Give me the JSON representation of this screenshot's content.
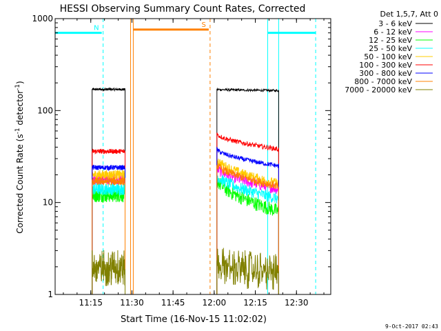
{
  "chart_data": {
    "type": "line",
    "title": "HESSI Observing Summary Count Rates, Corrected",
    "xlabel": "Start Time (16-Nov-15 11:02:02)",
    "ylabel_main": "Corrected Count Rate (s",
    "ylabel_sup1": "-1",
    "ylabel_mid": " detector",
    "ylabel_sup2": "-1",
    "ylabel_end": ")",
    "yscale": "log",
    "ylim": [
      1,
      1000
    ],
    "xlim_minutes": [
      0,
      100.5
    ],
    "xticks": [
      {
        "label": "11:15",
        "m": 13
      },
      {
        "label": "11:30",
        "m": 28
      },
      {
        "label": "11:45",
        "m": 43
      },
      {
        "label": "12:00",
        "m": 58
      },
      {
        "label": "12:15",
        "m": 73
      },
      {
        "label": "12:30",
        "m": 88
      }
    ],
    "yticks": [
      {
        "label": "1",
        "v": 1
      },
      {
        "label": "10",
        "v": 10
      },
      {
        "label": "100",
        "v": 100
      },
      {
        "label": "1000",
        "v": 1000
      }
    ],
    "legend_title": "Det 1,5,7, Att 0",
    "legend_position": "right, outside plot",
    "series": [
      {
        "name": "3 - 6 keV",
        "color": "#000000",
        "seg1": 170,
        "seg2": [
          170,
          165
        ]
      },
      {
        "name": "6 - 12 keV",
        "color": "#ff00ff",
        "seg1": 18,
        "seg2": [
          24,
          14
        ]
      },
      {
        "name": "12 - 25 keV",
        "color": "#00ff00",
        "seg1": 12,
        "seg2": [
          18,
          8
        ]
      },
      {
        "name": "25 - 50 keV",
        "color": "#00ffff",
        "seg1": 14,
        "seg2": [
          20,
          11
        ]
      },
      {
        "name": "50 - 100 keV",
        "color": "#ffcc00",
        "seg1": 20,
        "seg2": [
          30,
          16
        ]
      },
      {
        "name": "100 - 300 keV",
        "color": "#ff0000",
        "seg1": 36,
        "seg2": [
          56,
          38
        ]
      },
      {
        "name": "300 - 800 keV",
        "color": "#0000ff",
        "seg1": 24,
        "seg2": [
          38,
          25
        ]
      },
      {
        "name": "800 - 7000 keV",
        "color": "#ff8000",
        "seg1": 17,
        "seg2": [
          26,
          15
        ]
      },
      {
        "name": "7000 - 20000 keV",
        "color": "#808000",
        "seg1": 1.7,
        "seg2": [
          1.9,
          1.5
        ]
      }
    ],
    "data_segments_minutes": [
      [
        13.5,
        25.5
      ],
      [
        59,
        81.5
      ]
    ],
    "flags": [
      {
        "label": "N",
        "color": "#00ffff",
        "y": 700,
        "from": 0,
        "to": 17,
        "fromB": 77.5,
        "toB": 95
      },
      {
        "label": "S",
        "color": "#ff8000",
        "y": 760,
        "from": 28.5,
        "to": 56
      }
    ],
    "vlines_minutes": [
      {
        "m": 0,
        "color": "#00ffff",
        "dashed": false
      },
      {
        "m": 17.5,
        "color": "#00ffff",
        "dashed": true
      },
      {
        "m": 27.5,
        "color": "#ff8000",
        "dashed": false
      },
      {
        "m": 28.5,
        "color": "#ff8000",
        "dashed": false
      },
      {
        "m": 56.5,
        "color": "#ff8000",
        "dashed": true
      },
      {
        "m": 77.5,
        "color": "#00ffff",
        "dashed": false
      },
      {
        "m": 81.5,
        "color": "#00ffff",
        "dashed": false
      },
      {
        "m": 95,
        "color": "#00ffff",
        "dashed": true
      }
    ],
    "timestamp": "9-Oct-2017 02:43"
  }
}
